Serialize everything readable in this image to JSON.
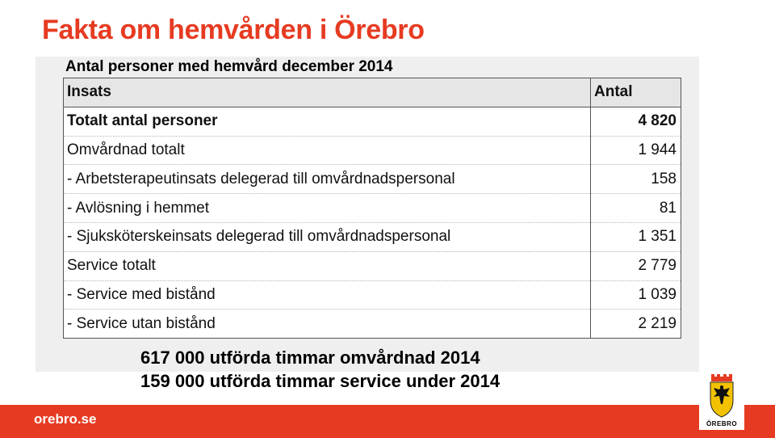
{
  "title": "Fakta om hemvården i Örebro",
  "subtitle": "Antal personer med hemvård december 2014",
  "table": {
    "headers": [
      "Insats",
      "Antal"
    ],
    "rows": [
      {
        "label": "Totalt antal personer",
        "value": "4 820",
        "bold": true
      },
      {
        "label": "Omvårdnad totalt",
        "value": "1 944",
        "bold": false
      },
      {
        "label": "- Arbetsterapeutinsats delegerad till omvårdnadspersonal",
        "value": "158",
        "bold": false
      },
      {
        "label": "- Avlösning i hemmet",
        "value": "81",
        "bold": false
      },
      {
        "label": "- Sjuksköterskeinsats delegerad till omvårdnadspersonal",
        "value": "1 351",
        "bold": false
      },
      {
        "label": "Service totalt",
        "value": "2 779",
        "bold": false
      },
      {
        "label": "- Service med bistånd",
        "value": "1 039",
        "bold": false
      },
      {
        "label": "- Service utan bistånd",
        "value": "2 219",
        "bold": false
      }
    ]
  },
  "summary": [
    "617 000 utförda timmar omvårdnad 2014",
    "159 000 utförda timmar service under 2014"
  ],
  "footer": {
    "url": "orebro.se"
  },
  "logo": {
    "text": "ÖREBRO",
    "icon": "orebro-coat-of-arms-icon"
  },
  "colors": {
    "brand": "#e63b22",
    "panel": "#efefef",
    "header_row": "#e6e6e6"
  }
}
